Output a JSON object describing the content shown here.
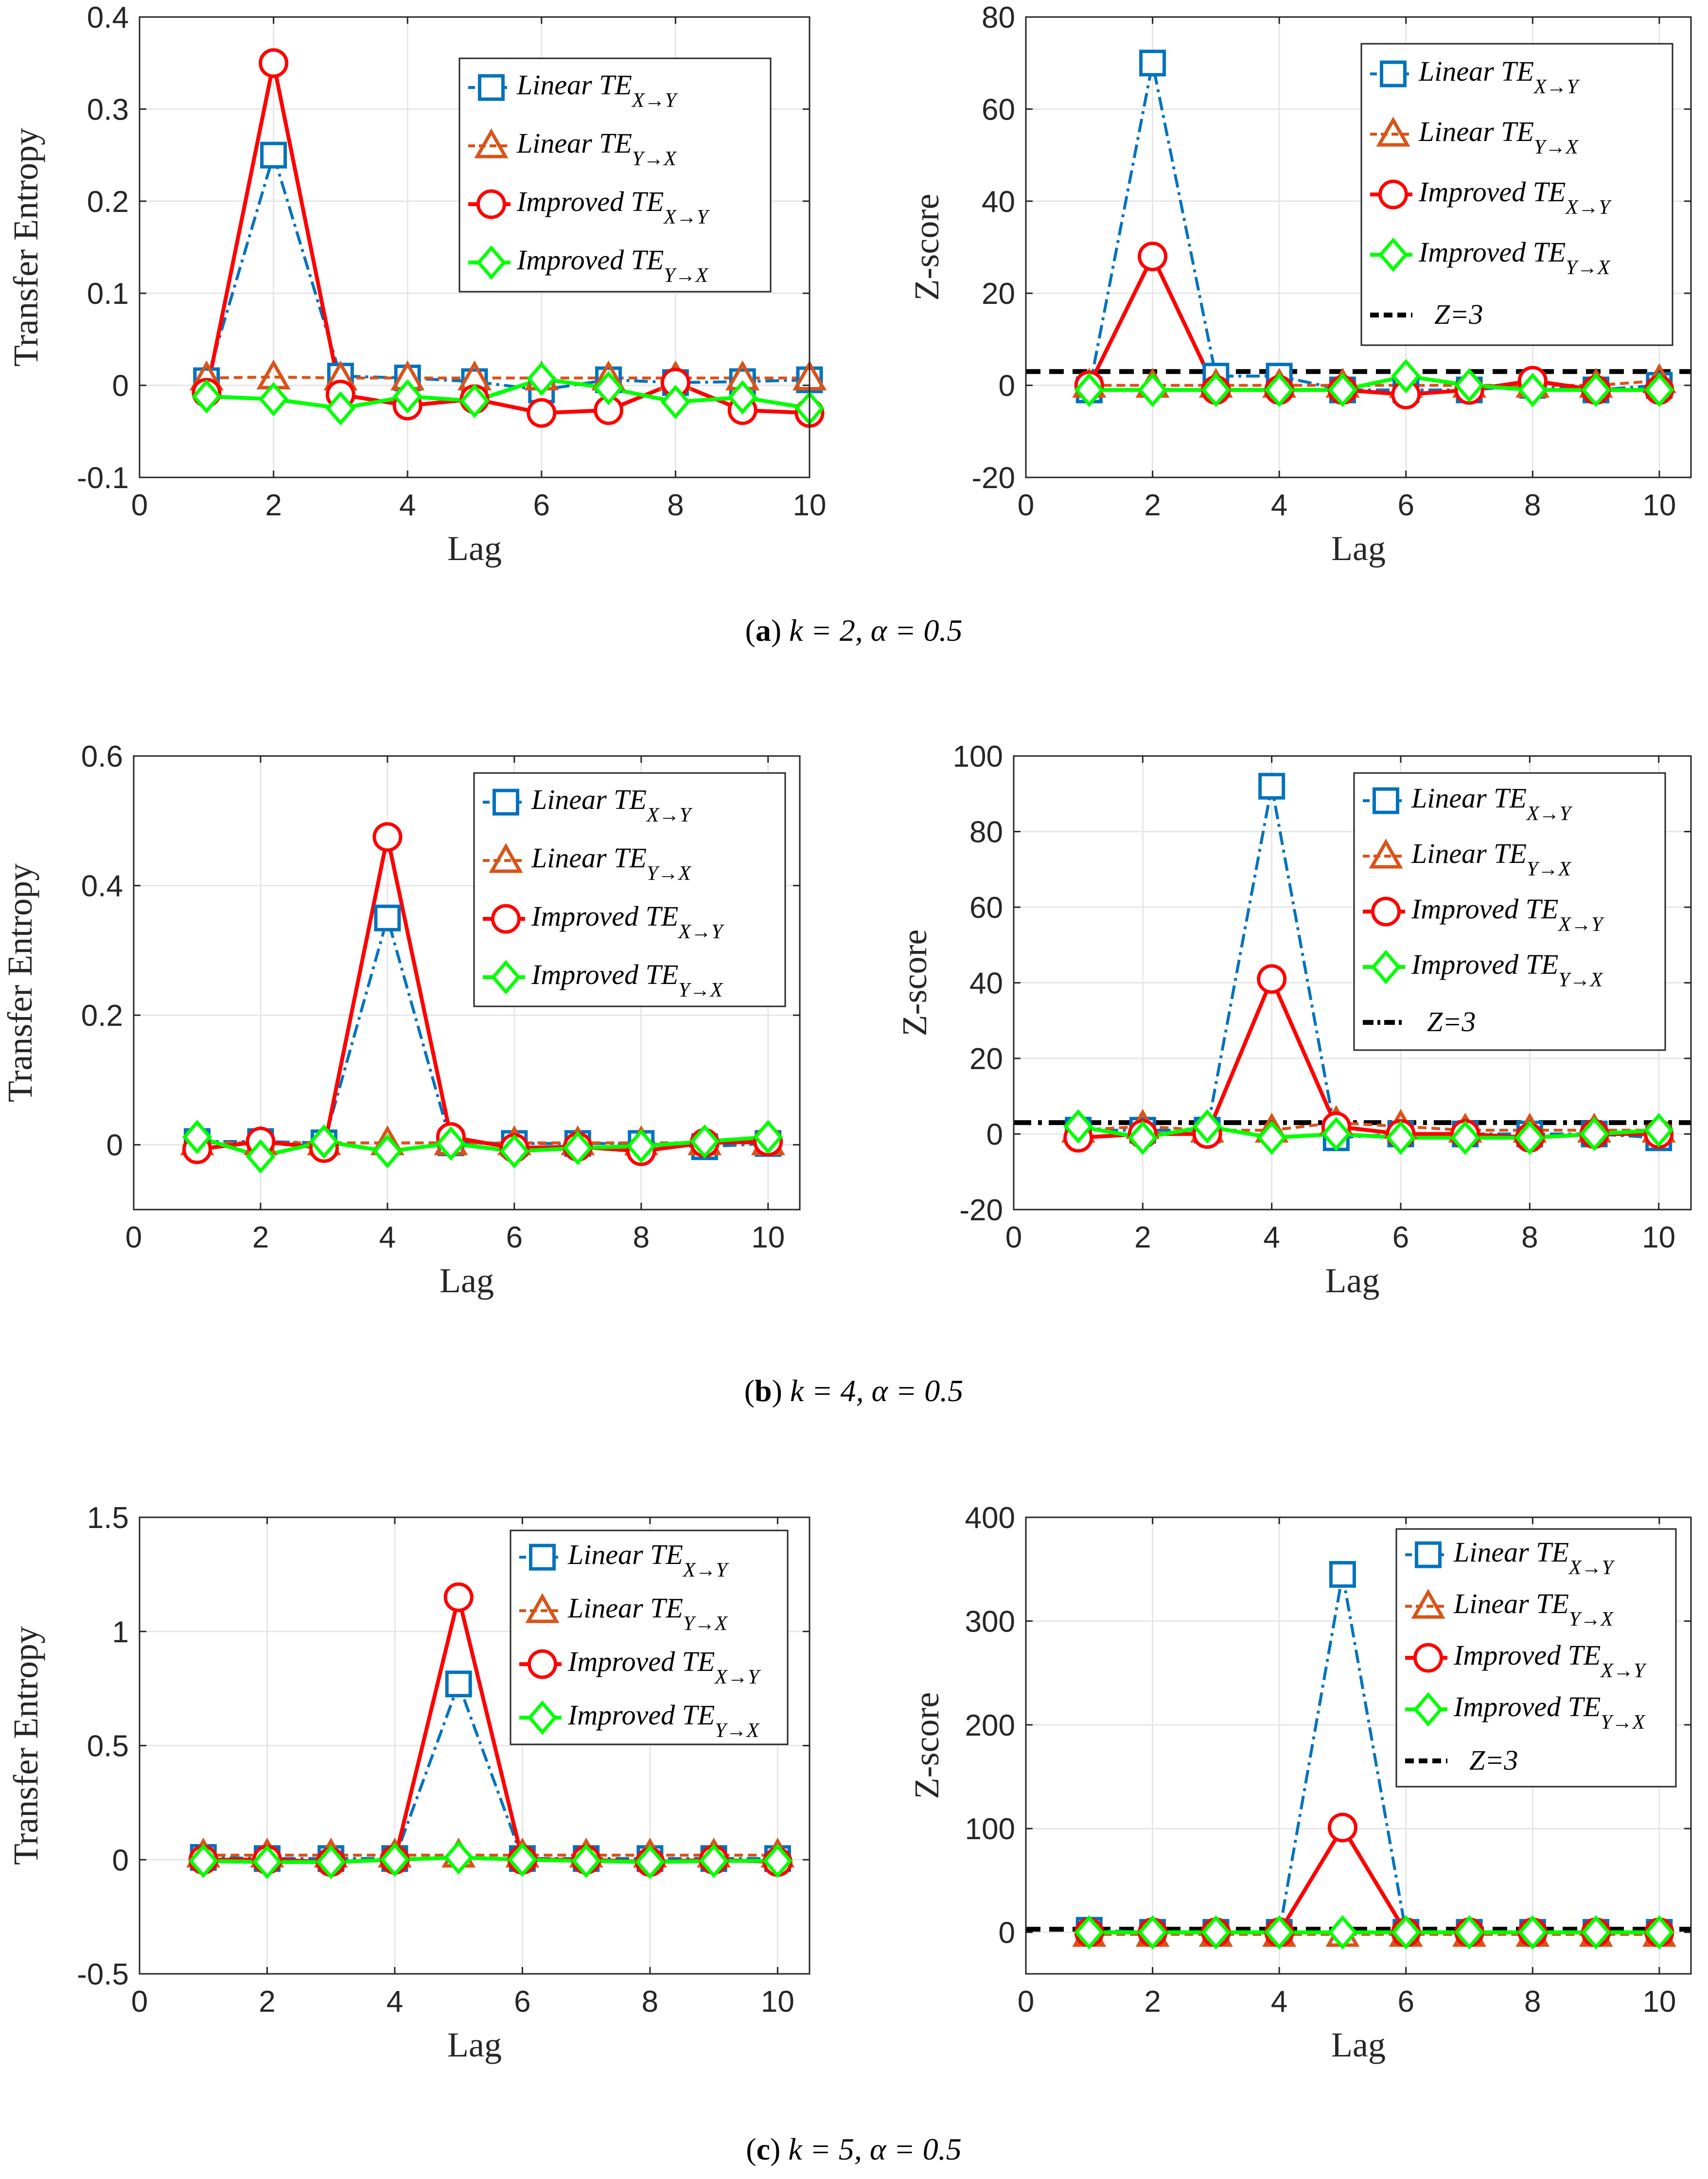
{
  "figure_captions": [
    {
      "label": "a",
      "text": "k = 2, α = 0.5"
    },
    {
      "label": "b",
      "text": "k = 4, α = 0.5"
    },
    {
      "label": "c",
      "text": "k = 5, α = 0.5"
    }
  ],
  "colors": {
    "linear_xy": "#0072BD",
    "linear_yx": "#D95319",
    "improved_xy": "#FF0000",
    "improved_yx": "#00FF00",
    "threshold": "#000000"
  },
  "chart_data": [
    {
      "id": "a-te",
      "type": "line",
      "xlabel": "Lag",
      "ylabel": "Transfer Entropy",
      "xlim": [
        0,
        10
      ],
      "ylim": [
        -0.1,
        0.4
      ],
      "xticks": [
        0,
        2,
        4,
        6,
        8,
        10
      ],
      "yticks": [
        -0.1,
        0,
        0.1,
        0.2,
        0.3,
        0.4
      ],
      "ytick_labels": [
        "-0.1",
        "0",
        "0.1",
        "0.2",
        "0.3",
        "0.4"
      ],
      "grid": true,
      "x": [
        1,
        2,
        3,
        4,
        5,
        6,
        7,
        8,
        9,
        10
      ],
      "series": [
        {
          "name": "Linear TE",
          "sub": "X→Y",
          "key": "linear_xy",
          "values": [
            0.005,
            0.25,
            0.01,
            0.008,
            0.004,
            -0.005,
            0.006,
            0.003,
            0.004,
            0.006
          ]
        },
        {
          "name": "Linear TE",
          "sub": "Y→X",
          "key": "linear_yx",
          "values": [
            0.008,
            0.009,
            0.008,
            0.008,
            0.008,
            0.008,
            0.008,
            0.008,
            0.008,
            0.008
          ]
        },
        {
          "name": "Improved TE",
          "sub": "X→Y",
          "key": "improved_xy",
          "values": [
            -0.008,
            0.35,
            -0.01,
            -0.022,
            -0.015,
            -0.03,
            -0.027,
            0.003,
            -0.027,
            -0.03
          ]
        },
        {
          "name": "Improved TE",
          "sub": "Y→X",
          "key": "improved_yx",
          "values": [
            -0.012,
            -0.015,
            -0.025,
            -0.012,
            -0.017,
            0.007,
            -0.003,
            -0.018,
            -0.013,
            -0.025
          ]
        }
      ]
    },
    {
      "id": "a-z",
      "type": "line",
      "xlabel": "Lag",
      "ylabel": "Z-score",
      "xlim": [
        0,
        10.5
      ],
      "ylim": [
        -20,
        80
      ],
      "xticks": [
        0,
        2,
        4,
        6,
        8,
        10
      ],
      "yticks": [
        -20,
        0,
        20,
        40,
        60,
        80
      ],
      "ytick_labels": [
        "-20",
        "0",
        "20",
        "40",
        "60",
        "80"
      ],
      "grid": true,
      "x": [
        1,
        2,
        3,
        4,
        5,
        6,
        7,
        8,
        9,
        10
      ],
      "threshold": {
        "label": "Z=3",
        "value": 3,
        "style": "dash"
      },
      "series": [
        {
          "name": "Linear TE",
          "sub": "X→Y",
          "key": "linear_xy",
          "values": [
            -1,
            70,
            2,
            2,
            -1,
            -1,
            -1,
            0,
            -1,
            0
          ]
        },
        {
          "name": "Linear TE",
          "sub": "Y→X",
          "key": "linear_yx",
          "values": [
            0,
            0,
            0,
            0,
            0,
            0,
            0,
            0,
            0,
            1
          ]
        },
        {
          "name": "Improved TE",
          "sub": "X→Y",
          "key": "improved_xy",
          "values": [
            0,
            28,
            -1,
            -1,
            -1,
            -2,
            -1,
            1,
            -1,
            -1
          ]
        },
        {
          "name": "Improved TE",
          "sub": "Y→X",
          "key": "improved_yx",
          "values": [
            -1,
            -1,
            -1,
            -1,
            -1,
            2,
            0,
            -1,
            -1,
            -1
          ]
        }
      ]
    },
    {
      "id": "b-te",
      "type": "line",
      "xlabel": "Lag",
      "ylabel": "Transfer Entropy",
      "xlim": [
        0,
        10.5
      ],
      "ylim": [
        -0.1,
        0.6
      ],
      "xticks": [
        0,
        2,
        4,
        6,
        8,
        10
      ],
      "yticks": [
        0,
        0.2,
        0.4,
        0.6
      ],
      "ytick_labels": [
        "0",
        "0.2",
        "0.4",
        "0.6"
      ],
      "grid": true,
      "x": [
        1,
        2,
        3,
        4,
        5,
        6,
        7,
        8,
        9,
        10
      ],
      "series": [
        {
          "name": "Linear TE",
          "sub": "X→Y",
          "key": "linear_xy",
          "values": [
            0.005,
            0.005,
            0.003,
            0.35,
            0.003,
            0.002,
            0.002,
            0.002,
            -0.003,
            0.002
          ]
        },
        {
          "name": "Linear TE",
          "sub": "Y→X",
          "key": "linear_yx",
          "values": [
            0.003,
            0.003,
            0.003,
            0.003,
            0.003,
            0.003,
            0.003,
            0.003,
            0.003,
            0.003
          ]
        },
        {
          "name": "Improved TE",
          "sub": "X→Y",
          "key": "improved_xy",
          "values": [
            -0.007,
            0.005,
            -0.005,
            0.475,
            0.012,
            -0.005,
            -0.003,
            -0.01,
            0.003,
            0.005
          ]
        },
        {
          "name": "Improved TE",
          "sub": "Y→X",
          "key": "improved_yx",
          "values": [
            0.012,
            -0.018,
            0.005,
            -0.01,
            0.002,
            -0.01,
            -0.005,
            -0.002,
            0.005,
            0.012
          ]
        }
      ]
    },
    {
      "id": "b-z",
      "type": "line",
      "xlabel": "Lag",
      "ylabel": "Z-score",
      "xlim": [
        0,
        10.5
      ],
      "ylim": [
        -20,
        100
      ],
      "xticks": [
        0,
        2,
        4,
        6,
        8,
        10
      ],
      "yticks": [
        -20,
        0,
        20,
        40,
        60,
        80,
        100
      ],
      "ytick_labels": [
        "-20",
        "0",
        "20",
        "40",
        "60",
        "80",
        "100"
      ],
      "grid": true,
      "x": [
        1,
        2,
        3,
        4,
        5,
        6,
        7,
        8,
        9,
        10
      ],
      "threshold": {
        "label": "Z=3",
        "value": 3,
        "style": "dashdot"
      },
      "series": [
        {
          "name": "Linear TE",
          "sub": "X→Y",
          "key": "linear_xy",
          "values": [
            1,
            1,
            1,
            92,
            -1,
            0,
            0,
            0,
            0,
            -1
          ]
        },
        {
          "name": "Linear TE",
          "sub": "Y→X",
          "key": "linear_yx",
          "values": [
            1,
            2,
            1,
            1,
            3,
            2,
            1,
            1,
            1,
            1
          ]
        },
        {
          "name": "Improved TE",
          "sub": "X→Y",
          "key": "improved_xy",
          "values": [
            -1,
            0,
            0,
            41,
            2,
            0,
            0,
            -1,
            0,
            0
          ]
        },
        {
          "name": "Improved TE",
          "sub": "Y→X",
          "key": "improved_yx",
          "values": [
            2,
            -1,
            2,
            -1,
            0,
            -1,
            -1,
            -1,
            0,
            1
          ]
        }
      ]
    },
    {
      "id": "c-te",
      "type": "line",
      "xlabel": "Lag",
      "ylabel": "Transfer Entropy",
      "xlim": [
        0,
        10.5
      ],
      "ylim": [
        -0.5,
        1.5
      ],
      "xticks": [
        0,
        2,
        4,
        6,
        8,
        10
      ],
      "yticks": [
        -0.5,
        0,
        0.5,
        1,
        1.5
      ],
      "ytick_labels": [
        "-0.5",
        "0",
        "0.5",
        "1",
        "1.5"
      ],
      "grid": true,
      "x": [
        1,
        2,
        3,
        4,
        5,
        6,
        7,
        8,
        9,
        10
      ],
      "series": [
        {
          "name": "Linear TE",
          "sub": "X→Y",
          "key": "linear_xy",
          "values": [
            0.01,
            0.005,
            0.005,
            0.005,
            0.77,
            0.005,
            0.005,
            0.005,
            0.005,
            0.005
          ]
        },
        {
          "name": "Linear TE",
          "sub": "Y→X",
          "key": "linear_yx",
          "values": [
            0.02,
            0.02,
            0.02,
            0.02,
            0.02,
            0.02,
            0.02,
            0.02,
            0.02,
            0.02
          ]
        },
        {
          "name": "Improved TE",
          "sub": "X→Y",
          "key": "improved_xy",
          "values": [
            0.0,
            0.0,
            -0.01,
            0.0,
            1.15,
            0.0,
            0.0,
            -0.01,
            0.0,
            -0.01
          ]
        },
        {
          "name": "Improved TE",
          "sub": "Y→X",
          "key": "improved_yx",
          "values": [
            -0.005,
            -0.01,
            -0.01,
            0.0,
            0.01,
            0.0,
            -0.005,
            -0.01,
            -0.005,
            -0.005
          ]
        }
      ]
    },
    {
      "id": "c-z",
      "type": "line",
      "xlabel": "Lag",
      "ylabel": "Z-score",
      "xlim": [
        0,
        10.5
      ],
      "ylim": [
        -40,
        400
      ],
      "xticks": [
        0,
        2,
        4,
        6,
        8,
        10
      ],
      "yticks": [
        0,
        100,
        200,
        300,
        400
      ],
      "ytick_labels": [
        "0",
        "100",
        "200",
        "300",
        "400"
      ],
      "grid": true,
      "x": [
        1,
        2,
        3,
        4,
        5,
        6,
        7,
        8,
        9,
        10
      ],
      "threshold": {
        "label": "Z=3",
        "value": 3,
        "style": "dash"
      },
      "series": [
        {
          "name": "Linear TE",
          "sub": "X→Y",
          "key": "linear_xy",
          "values": [
            2,
            0,
            0,
            0,
            345,
            0,
            0,
            0,
            0,
            0
          ]
        },
        {
          "name": "Linear TE",
          "sub": "Y→X",
          "key": "linear_yx",
          "values": [
            -2,
            -2,
            -2,
            -2,
            -2,
            -2,
            -2,
            -2,
            -2,
            -2
          ]
        },
        {
          "name": "Improved TE",
          "sub": "X→Y",
          "key": "improved_xy",
          "values": [
            0,
            0,
            0,
            0,
            101,
            0,
            0,
            0,
            0,
            0
          ]
        },
        {
          "name": "Improved TE",
          "sub": "Y→X",
          "key": "improved_yx",
          "values": [
            0,
            0,
            0,
            0,
            0,
            0,
            0,
            0,
            0,
            0
          ]
        }
      ]
    }
  ]
}
